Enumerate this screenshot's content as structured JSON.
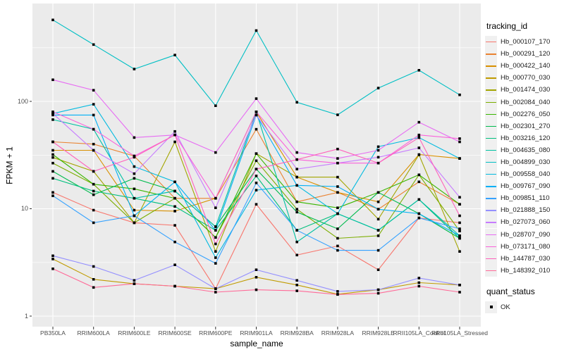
{
  "chart_data": {
    "type": "line",
    "title": "",
    "xlabel": "sample_name",
    "ylabel": "FPKM + 1",
    "y_scale": "log10",
    "ylim": [
      0.8,
      800
    ],
    "y_breaks": [
      1,
      10,
      100
    ],
    "y_break_labels": [
      "1",
      "10",
      "100"
    ],
    "y_minor_breaks": [
      3.16,
      31.6,
      316
    ],
    "grid": "white major and minor gridlines on gray panel",
    "legend_position": "right",
    "legend_title": "tracking_id",
    "panel_background": "#EBEBEB",
    "grid_color": "#FFFFFF",
    "tick_text_color": "#4D4D4D",
    "categories": [
      "PB350LA",
      "RRIM600LA",
      "RRIM600LE",
      "RRIM600SE",
      "RRIM600PE",
      "RRIM901LA",
      "RRIM928BA",
      "RRIM928LA",
      "RRIM928LE",
      "RRII105LA_Control",
      "RRII105LA_Stressed"
    ],
    "series": [
      {
        "name": "Hb_000107_170",
        "color": "#F8766D",
        "values": [
          14.2,
          9.7,
          7.4,
          7.0,
          1.8,
          11.0,
          3.7,
          4.5,
          2.7,
          8.2,
          7.4
        ]
      },
      {
        "name": "Hb_000291_120",
        "color": "#EA8331",
        "values": [
          42,
          40,
          31,
          12.5,
          12.5,
          55,
          11.6,
          14.2,
          9.9,
          17.8,
          11.0
        ]
      },
      {
        "name": "Hb_000422_140",
        "color": "#D89000",
        "values": [
          35,
          35,
          9.7,
          9.5,
          12.5,
          80,
          19.7,
          14.2,
          11.6,
          32,
          29.4
        ]
      },
      {
        "name": "Hb_000770_030",
        "color": "#C09B00",
        "values": [
          3.4,
          2.2,
          2.0,
          1.9,
          1.8,
          2.3,
          1.95,
          1.6,
          1.76,
          2.05,
          1.95
        ]
      },
      {
        "name": "Hb_001474_030",
        "color": "#A3A500",
        "values": [
          30,
          22.3,
          7.4,
          42,
          4.0,
          32.6,
          19.7,
          19.7,
          8.0,
          31.8,
          4.0
        ]
      },
      {
        "name": "Hb_002084_040",
        "color": "#7CAE00",
        "values": [
          26.6,
          16.9,
          7.4,
          12.5,
          5.4,
          28,
          9.9,
          5.3,
          5.6,
          20.7,
          6.2
        ]
      },
      {
        "name": "Hb_002276_050",
        "color": "#39B600",
        "values": [
          32,
          16.9,
          15.3,
          12.5,
          5.4,
          32.6,
          11.6,
          10.2,
          14.2,
          20.7,
          11.0
        ]
      },
      {
        "name": "Hb_002301_270",
        "color": "#00BB4E",
        "values": [
          22.3,
          13.5,
          19.2,
          14.6,
          6.8,
          23.4,
          9.3,
          6.5,
          14.2,
          9.0,
          5.3
        ]
      },
      {
        "name": "Hb_003216_120",
        "color": "#00BF7D",
        "values": [
          19.2,
          14.6,
          12.5,
          10.5,
          6.3,
          20.2,
          6.3,
          9.0,
          6.3,
          12.2,
          5.3
        ]
      },
      {
        "name": "Hb_004635_080",
        "color": "#00C1A3",
        "values": [
          67.6,
          55,
          12.5,
          14.6,
          6.8,
          80,
          4.9,
          9.0,
          6.3,
          12.2,
          5.6
        ]
      },
      {
        "name": "Hb_004899_030",
        "color": "#00BFC4",
        "values": [
          574,
          338,
          200,
          270,
          91,
          457,
          98,
          75,
          133,
          195,
          115
        ]
      },
      {
        "name": "Hb_009558_040",
        "color": "#00BAE0",
        "values": [
          77,
          94,
          24.7,
          17.8,
          3.5,
          14.9,
          16.5,
          9.0,
          37.8,
          46,
          29.4
        ]
      },
      {
        "name": "Hb_009767_090",
        "color": "#00B0F6",
        "values": [
          74.6,
          74.6,
          8.6,
          17.8,
          6.3,
          74.6,
          16.5,
          16.1,
          9.9,
          9.0,
          5.6
        ]
      },
      {
        "name": "Hb_009851_110",
        "color": "#35A2FF",
        "values": [
          13.2,
          7.4,
          8.6,
          4.9,
          3.1,
          17.4,
          6.3,
          4.1,
          4.1,
          8.2,
          6.5
        ]
      },
      {
        "name": "Hb_021888_150",
        "color": "#9590FF",
        "values": [
          3.65,
          2.9,
          2.15,
          3.0,
          1.8,
          2.7,
          2.15,
          1.7,
          1.76,
          2.26,
          1.95
        ]
      },
      {
        "name": "Hb_027073_060",
        "color": "#C77CFF",
        "values": [
          77,
          35,
          21.2,
          52.5,
          10.2,
          74.6,
          23.4,
          26.6,
          30.2,
          36.9,
          12.8
        ]
      },
      {
        "name": "Hb_028707_090",
        "color": "#E76BF3",
        "values": [
          159,
          127,
          46,
          48.7,
          33.4,
          106,
          33.4,
          29.4,
          35,
          64,
          42
        ]
      },
      {
        "name": "Hb_073171_080",
        "color": "#FA62DB",
        "values": [
          80,
          55,
          31,
          48.7,
          12.5,
          80,
          28.7,
          26.6,
          26.6,
          48.7,
          45
        ]
      },
      {
        "name": "Hb_144787_030",
        "color": "#FF62BC",
        "values": [
          42,
          22.3,
          30.2,
          48.7,
          4.7,
          23.4,
          28.7,
          36,
          26.6,
          46,
          8.6
        ]
      },
      {
        "name": "Hb_148392_010",
        "color": "#FF6A98",
        "values": [
          2.76,
          1.85,
          2.0,
          1.9,
          1.67,
          1.76,
          1.72,
          1.59,
          1.63,
          1.9,
          1.67
        ]
      }
    ],
    "legend2": {
      "title": "quant_status",
      "items": [
        "OK"
      ],
      "marker_color": "#000000"
    }
  }
}
